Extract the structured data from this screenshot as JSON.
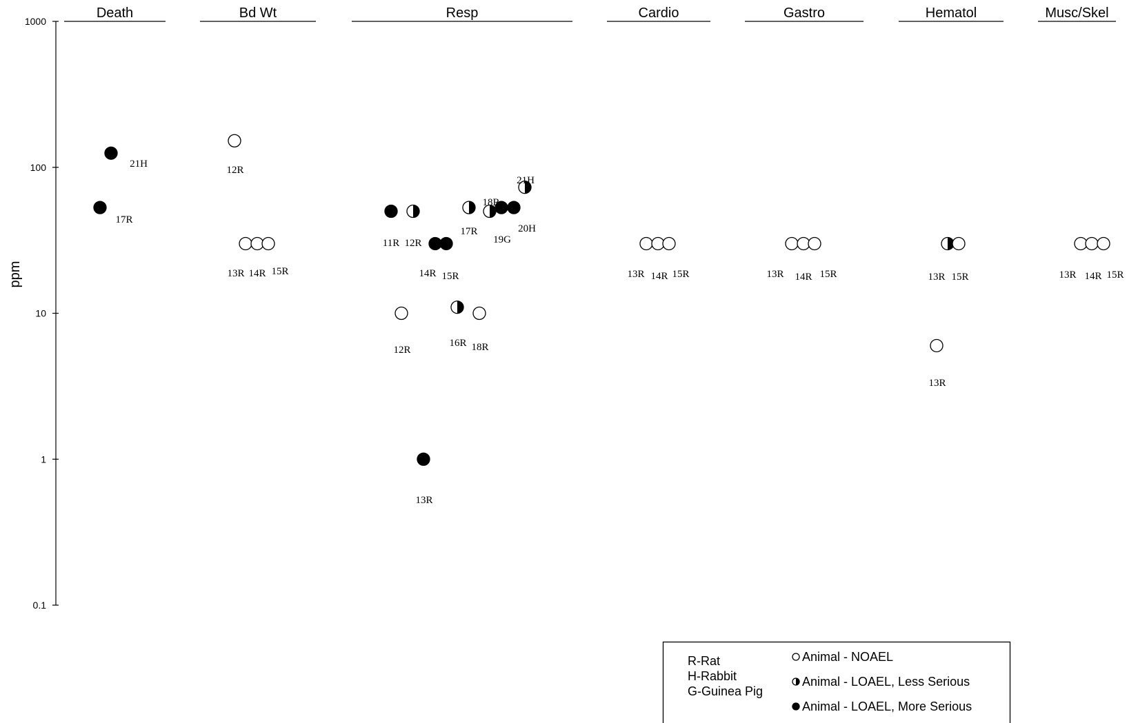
{
  "chart_data": {
    "type": "scatter",
    "ylabel": "ppm",
    "yscale": "log",
    "ylim": [
      0.1,
      1000
    ],
    "yticks": [
      {
        "value": 1000,
        "label": "1000"
      },
      {
        "value": 100,
        "label": "100"
      },
      {
        "value": 10,
        "label": "10"
      },
      {
        "value": 1,
        "label": "1"
      },
      {
        "value": 0.1,
        "label": "0.1"
      }
    ],
    "categories": [
      "Death",
      "Bd Wt",
      "Resp",
      "Cardio",
      "Gastro",
      "Hematol",
      "Musc/Skel"
    ],
    "points": [
      {
        "category": "Death",
        "label": "21H",
        "value": 125,
        "effect": "more_serious"
      },
      {
        "category": "Death",
        "label": "17R",
        "value": 53,
        "effect": "more_serious"
      },
      {
        "category": "Bd Wt",
        "label": "12R",
        "value": 152,
        "effect": "noael"
      },
      {
        "category": "Bd Wt",
        "label": "13R",
        "value": 30,
        "effect": "noael"
      },
      {
        "category": "Bd Wt",
        "label": "14R",
        "value": 30,
        "effect": "noael"
      },
      {
        "category": "Bd Wt",
        "label": "15R",
        "value": 30,
        "effect": "noael"
      },
      {
        "category": "Resp",
        "label": "11R",
        "value": 50,
        "effect": "more_serious"
      },
      {
        "category": "Resp",
        "label": "12R",
        "value": 50,
        "effect": "less_serious"
      },
      {
        "category": "Resp",
        "label": "12R",
        "value": 10,
        "effect": "noael"
      },
      {
        "category": "Resp",
        "label": "13R",
        "value": 1,
        "effect": "more_serious"
      },
      {
        "category": "Resp",
        "label": "14R",
        "value": 30,
        "effect": "more_serious"
      },
      {
        "category": "Resp",
        "label": "15R",
        "value": 30,
        "effect": "more_serious"
      },
      {
        "category": "Resp",
        "label": "16R",
        "value": 11,
        "effect": "less_serious"
      },
      {
        "category": "Resp",
        "label": "17R",
        "value": 53,
        "effect": "less_serious"
      },
      {
        "category": "Resp",
        "label": "18R",
        "value": 10,
        "effect": "noael"
      },
      {
        "category": "Resp",
        "label": "18R",
        "value": 50,
        "effect": "less_serious"
      },
      {
        "category": "Resp",
        "label": "19G",
        "value": 53,
        "effect": "more_serious"
      },
      {
        "category": "Resp",
        "label": "20H",
        "value": 53,
        "effect": "more_serious"
      },
      {
        "category": "Resp",
        "label": "21H",
        "value": 73,
        "effect": "less_serious"
      },
      {
        "category": "Cardio",
        "label": "13R",
        "value": 30,
        "effect": "noael"
      },
      {
        "category": "Cardio",
        "label": "14R",
        "value": 30,
        "effect": "noael"
      },
      {
        "category": "Cardio",
        "label": "15R",
        "value": 30,
        "effect": "noael"
      },
      {
        "category": "Gastro",
        "label": "13R",
        "value": 30,
        "effect": "noael"
      },
      {
        "category": "Gastro",
        "label": "14R",
        "value": 30,
        "effect": "noael"
      },
      {
        "category": "Gastro",
        "label": "15R",
        "value": 30,
        "effect": "noael"
      },
      {
        "category": "Hematol",
        "label": "13R",
        "value": 30,
        "effect": "less_serious"
      },
      {
        "category": "Hematol",
        "label": "15R",
        "value": 30,
        "effect": "noael"
      },
      {
        "category": "Hematol",
        "label": "13R",
        "value": 6,
        "effect": "noael"
      },
      {
        "category": "Musc/Skel",
        "label": "13R",
        "value": 30,
        "effect": "noael"
      },
      {
        "category": "Musc/Skel",
        "label": "14R",
        "value": 30,
        "effect": "noael"
      },
      {
        "category": "Musc/Skel",
        "label": "15R",
        "value": 30,
        "effect": "noael"
      }
    ],
    "legend": {
      "position": "bottom-right",
      "species": [
        "R-Rat",
        "H-Rabbit",
        "G-Guinea Pig"
      ],
      "symbols": [
        {
          "effect": "noael",
          "label": "Animal - NOAEL"
        },
        {
          "effect": "less_serious",
          "label": "Animal - LOAEL, Less Serious"
        },
        {
          "effect": "more_serious",
          "label": "Animal - LOAEL, More Serious"
        }
      ]
    },
    "colors": {
      "marker": "#000000",
      "fill_open": "#ffffff"
    }
  }
}
